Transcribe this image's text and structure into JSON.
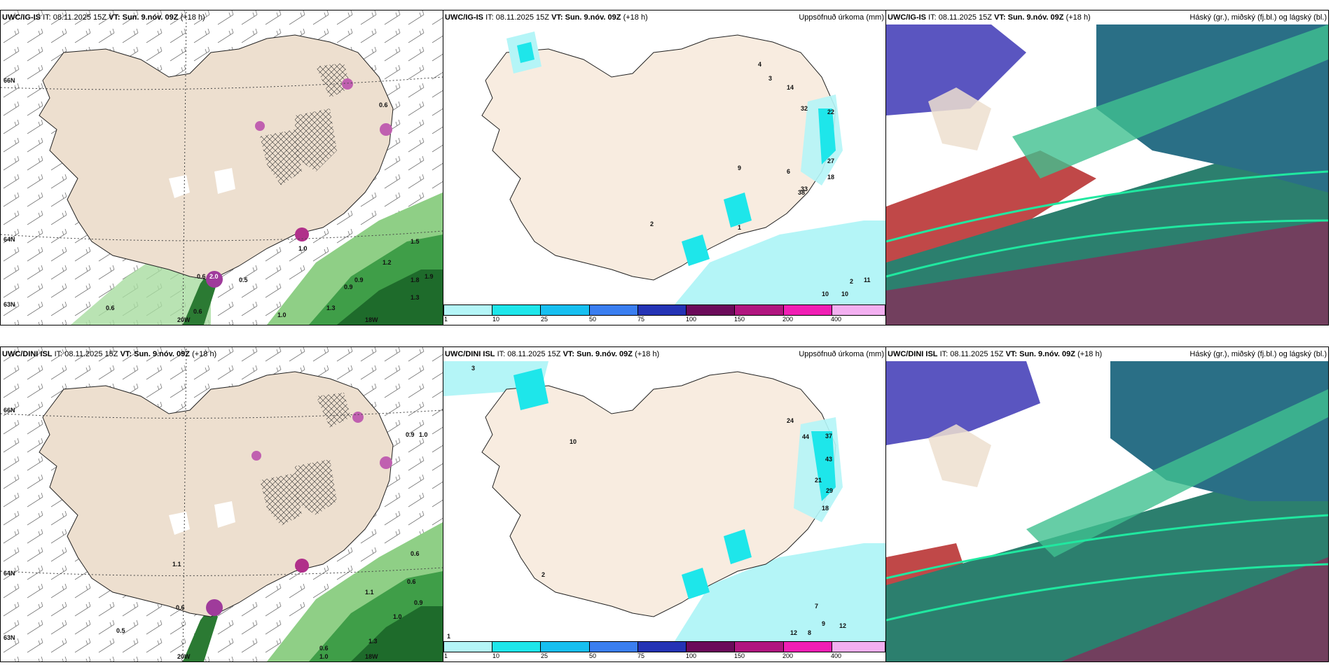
{
  "panels": {
    "wind_top": {
      "model": "UWC/IG-IS",
      "it_label": "IT:",
      "it": "08.11.2025 15Z",
      "vt_label": "VT:",
      "vt": "Sun. 9.nóv. 09Z",
      "lead": "(+18 h)"
    },
    "precip_top": {
      "model": "UWC/IG-IS",
      "it_label": "IT:",
      "it": "08.11.2025 15Z",
      "vt_label": "VT:",
      "vt": "Sun. 9.nóv. 09Z",
      "lead": "(+18 h)",
      "title": "Uppsöfnuð úrkoma (mm)"
    },
    "cloud_top": {
      "model": "UWC/IG-IS",
      "it_label": "IT:",
      "it": "08.11.2025 15Z",
      "vt_label": "VT:",
      "vt": "Sun. 9.nóv. 09Z",
      "lead": "(+18 h)",
      "title": "Háský (gr.), miðský (fj.bl.) og lágský (bl.)"
    },
    "wind_bottom": {
      "model": "UWC/DINI ISL",
      "it_label": "IT:",
      "it": "08.11.2025 15Z",
      "vt_label": "VT:",
      "vt": "Sun. 9.nóv. 09Z",
      "lead": "(+18 h)"
    },
    "precip_bottom": {
      "model": "UWC/DINI ISL",
      "it_label": "IT:",
      "it": "08.11.2025 15Z",
      "vt_label": "VT:",
      "vt": "Sun. 9.nóv. 09Z",
      "lead": "(+18 h)",
      "title": "Uppsöfnuð úrkoma (mm)"
    },
    "cloud_bottom": {
      "model": "UWC/DINI ISL",
      "it_label": "IT:",
      "it": "08.11.2025 15Z",
      "vt_label": "VT:",
      "vt": "Sun. 9.nóv. 09Z",
      "lead": "(+18 h)",
      "title": "Háský (gr.), miðský (fj.bl.) og lágský (bl.)"
    }
  },
  "grid_labels": {
    "lat_66": "66N",
    "lat_64": "64N",
    "lat_63": "63N",
    "lon_20": "20W",
    "lon_18": "18W"
  },
  "legend": {
    "ticks": [
      "1",
      "10",
      "25",
      "50",
      "75",
      "100",
      "150",
      "200",
      "400"
    ],
    "colors": [
      "#b4f5f7",
      "#1ee6ea",
      "#16bff0",
      "#3a7ef0",
      "#2433b5",
      "#6b0a5a",
      "#b0157f",
      "#f01eb4",
      "#f2aff0"
    ]
  },
  "wind_top_values": [
    "0.6",
    "0.6",
    "1.9",
    "1.3",
    "1.8",
    "1.2",
    "1.5",
    "0.6",
    "0.5",
    "0.6",
    "1.0",
    "1.0",
    "0.9",
    "0.9",
    "1.3",
    "2.0"
  ],
  "wind_bottom_values": [
    "0.6",
    "0.9",
    "1.0",
    "1.1",
    "0.6",
    "0.6",
    "0.5",
    "1.0",
    "1.3",
    "1.0",
    "0.6",
    "0.9",
    "1.1"
  ],
  "precip_top_values": [
    "1",
    "22",
    "32",
    "38",
    "18",
    "33",
    "27",
    "14",
    "4",
    "3",
    "9",
    "6",
    "2",
    "11",
    "10",
    "10",
    "2"
  ],
  "precip_bottom_values": [
    "3",
    "37",
    "44",
    "43",
    "29",
    "24",
    "21",
    "18",
    "12",
    "9",
    "8",
    "7",
    "10",
    "12",
    "2",
    "1"
  ]
}
